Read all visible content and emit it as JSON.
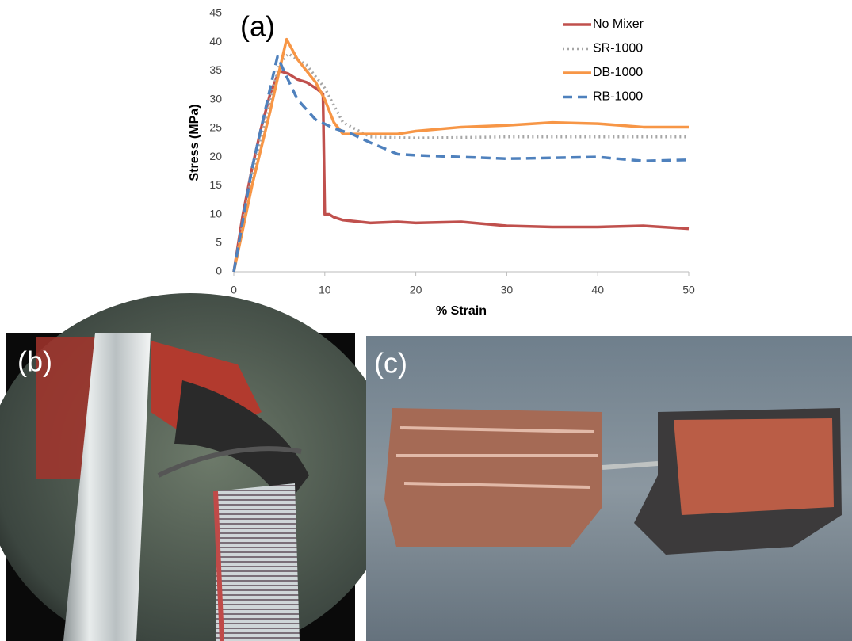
{
  "chart_data": {
    "type": "line",
    "panel_label": "(a)",
    "xlabel": "% Strain",
    "ylabel": "Stress (MPa)",
    "xlim": [
      0,
      50
    ],
    "xticks": [
      0,
      10,
      20,
      30,
      40,
      50
    ],
    "ylim": [
      0,
      45
    ],
    "yticks": [
      0,
      5,
      10,
      15,
      20,
      25,
      30,
      35,
      40,
      45
    ],
    "grid": false,
    "legend": "upper right",
    "series": [
      {
        "name": "No Mixer",
        "color": "#c0504d",
        "dash": "solid",
        "x": [
          0,
          1,
          2,
          3,
          4,
          5,
          6,
          7,
          8,
          9,
          9.8,
          10,
          10.5,
          11,
          12,
          15,
          18,
          20,
          25,
          30,
          35,
          40,
          45,
          50
        ],
        "values": [
          0,
          10,
          18,
          25,
          31,
          35,
          34.5,
          33.5,
          33,
          32,
          31,
          10,
          10,
          9.5,
          9,
          8.5,
          8.7,
          8.5,
          8.7,
          8,
          7.8,
          7.8,
          8,
          7.5
        ]
      },
      {
        "name": "SR-1000",
        "color": "#a6a6a6",
        "dash": "dotted",
        "x": [
          0,
          2,
          4,
          5,
          6,
          8,
          10,
          12,
          15,
          20,
          30,
          40,
          50
        ],
        "values": [
          0,
          17,
          30,
          36,
          38,
          36,
          32,
          26,
          23.5,
          23.3,
          23.5,
          23.5,
          23.5
        ]
      },
      {
        "name": "DB-1000",
        "color": "#f79646",
        "dash": "solid",
        "x": [
          0,
          2,
          4,
          5,
          5.8,
          7,
          9,
          10,
          11,
          12,
          15,
          18,
          20,
          25,
          30,
          35,
          40,
          45,
          50
        ],
        "values": [
          0,
          15,
          28,
          35,
          40.5,
          37,
          33,
          30,
          26,
          24,
          24,
          24,
          24.5,
          25.2,
          25.5,
          26,
          25.8,
          25.2,
          25.2
        ]
      },
      {
        "name": "RB-1000",
        "color": "#4f81bd",
        "dash": "dashed",
        "x": [
          0,
          2,
          4,
          4.8,
          5.5,
          7,
          9,
          11,
          13,
          15,
          18,
          20,
          30,
          40,
          45,
          50
        ],
        "values": [
          0,
          18,
          32,
          37.5,
          35,
          30,
          26.5,
          25,
          24,
          22.5,
          20.5,
          20.3,
          19.7,
          20,
          19.3,
          19.5
        ]
      }
    ]
  },
  "photo_labels": [
    "(b)",
    "(c)"
  ]
}
